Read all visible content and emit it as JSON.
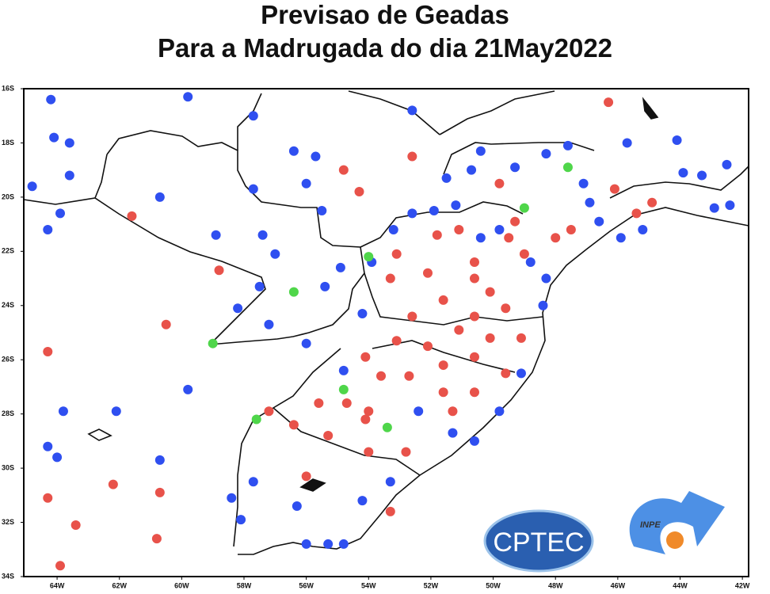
{
  "title": [
    "Previsao  de  Geadas",
    "Para a Madrugada do dia 21May2022"
  ],
  "map": {
    "xlim": [
      -65.07,
      -41.8
    ],
    "ylim": [
      -16,
      -34
    ],
    "xticks": [
      {
        "value": -64,
        "label": "64W"
      },
      {
        "value": -62,
        "label": "62W"
      },
      {
        "value": -60,
        "label": "60W"
      },
      {
        "value": -58,
        "label": "58W"
      },
      {
        "value": -56,
        "label": "56W"
      },
      {
        "value": -54,
        "label": "54W"
      },
      {
        "value": -52,
        "label": "52W"
      },
      {
        "value": -50,
        "label": "50W"
      },
      {
        "value": -48,
        "label": "48W"
      },
      {
        "value": -46,
        "label": "46W"
      },
      {
        "value": -44,
        "label": "44W"
      },
      {
        "value": -42,
        "label": "42W"
      }
    ],
    "yticks": [
      {
        "value": -16,
        "label": "16S"
      },
      {
        "value": -18,
        "label": "18S"
      },
      {
        "value": -20,
        "label": "20S"
      },
      {
        "value": -22,
        "label": "22S"
      },
      {
        "value": -24,
        "label": "24S"
      },
      {
        "value": -26,
        "label": "26S"
      },
      {
        "value": -28,
        "label": "28S"
      },
      {
        "value": -30,
        "label": "30S"
      },
      {
        "value": -32,
        "label": "32S"
      },
      {
        "value": -34,
        "label": "34S"
      }
    ],
    "stations": [
      {
        "color": "#2f4ff0",
        "points": [
          [
            -64.2,
            -16.4
          ],
          [
            -59.8,
            -16.3
          ],
          [
            -64.1,
            -17.8
          ],
          [
            -63.6,
            -18.0
          ],
          [
            -64.8,
            -19.6
          ],
          [
            -63.6,
            -19.2
          ],
          [
            -64.3,
            -21.2
          ],
          [
            -63.9,
            -20.6
          ],
          [
            -60.7,
            -20.0
          ],
          [
            -57.7,
            -17.0
          ],
          [
            -57.7,
            -19.7
          ],
          [
            -56.4,
            -18.3
          ],
          [
            -55.7,
            -18.5
          ],
          [
            -56.0,
            -19.5
          ],
          [
            -55.5,
            -20.5
          ],
          [
            -57.4,
            -21.4
          ],
          [
            -58.9,
            -21.4
          ],
          [
            -57.0,
            -22.1
          ],
          [
            -57.5,
            -23.3
          ],
          [
            -58.2,
            -24.1
          ],
          [
            -57.2,
            -24.7
          ],
          [
            -56.0,
            -25.4
          ],
          [
            -54.8,
            -26.4
          ],
          [
            -59.8,
            -27.1
          ],
          [
            -63.8,
            -27.9
          ],
          [
            -62.1,
            -27.9
          ],
          [
            -64.3,
            -29.2
          ],
          [
            -64.0,
            -29.6
          ],
          [
            -60.7,
            -29.7
          ],
          [
            -57.7,
            -30.5
          ],
          [
            -58.4,
            -31.1
          ],
          [
            -58.1,
            -31.9
          ],
          [
            -56.3,
            -31.4
          ],
          [
            -56.0,
            -32.8
          ],
          [
            -55.3,
            -32.8
          ],
          [
            -54.8,
            -32.8
          ],
          [
            -54.2,
            -31.2
          ],
          [
            -53.3,
            -30.5
          ],
          [
            -52.4,
            -27.9
          ],
          [
            -51.3,
            -28.7
          ],
          [
            -50.6,
            -29.0
          ],
          [
            -49.8,
            -27.9
          ],
          [
            -49.1,
            -26.5
          ],
          [
            -48.4,
            -24.0
          ],
          [
            -48.3,
            -23.0
          ],
          [
            -48.8,
            -22.4
          ],
          [
            -50.4,
            -18.3
          ],
          [
            -50.7,
            -19.0
          ],
          [
            -51.5,
            -19.3
          ],
          [
            -51.2,
            -20.3
          ],
          [
            -51.9,
            -20.5
          ],
          [
            -52.6,
            -20.6
          ],
          [
            -50.4,
            -21.5
          ],
          [
            -49.8,
            -21.2
          ],
          [
            -49.3,
            -18.9
          ],
          [
            -48.3,
            -18.4
          ],
          [
            -47.6,
            -18.1
          ],
          [
            -47.1,
            -19.5
          ],
          [
            -46.9,
            -20.2
          ],
          [
            -46.6,
            -20.9
          ],
          [
            -45.9,
            -21.5
          ],
          [
            -45.2,
            -21.2
          ],
          [
            -45.7,
            -18.0
          ],
          [
            -44.1,
            -17.9
          ],
          [
            -43.9,
            -19.1
          ],
          [
            -43.3,
            -19.2
          ],
          [
            -42.5,
            -18.8
          ],
          [
            -42.4,
            -20.3
          ],
          [
            -42.9,
            -20.4
          ],
          [
            -52.6,
            -16.8
          ],
          [
            -53.9,
            -22.4
          ],
          [
            -54.9,
            -22.6
          ],
          [
            -55.4,
            -23.3
          ],
          [
            -54.2,
            -24.3
          ],
          [
            -53.2,
            -21.2
          ]
        ]
      },
      {
        "color": "#e8524a",
        "points": [
          [
            -46.3,
            -16.5
          ],
          [
            -52.6,
            -18.5
          ],
          [
            -54.8,
            -19.0
          ],
          [
            -54.3,
            -19.8
          ],
          [
            -61.6,
            -20.7
          ],
          [
            -58.8,
            -22.7
          ],
          [
            -60.5,
            -24.7
          ],
          [
            -64.3,
            -25.7
          ],
          [
            -62.2,
            -30.6
          ],
          [
            -60.7,
            -30.9
          ],
          [
            -64.3,
            -31.1
          ],
          [
            -63.4,
            -32.1
          ],
          [
            -60.8,
            -32.6
          ],
          [
            -63.9,
            -33.6
          ],
          [
            -51.8,
            -21.4
          ],
          [
            -51.1,
            -21.2
          ],
          [
            -50.6,
            -22.4
          ],
          [
            -49.5,
            -21.5
          ],
          [
            -49.0,
            -22.1
          ],
          [
            -48.0,
            -21.5
          ],
          [
            -47.5,
            -21.2
          ],
          [
            -46.1,
            -19.7
          ],
          [
            -45.4,
            -20.6
          ],
          [
            -44.9,
            -20.2
          ],
          [
            -53.1,
            -22.1
          ],
          [
            -52.1,
            -22.8
          ],
          [
            -53.3,
            -23.0
          ],
          [
            -50.6,
            -23.0
          ],
          [
            -50.1,
            -23.5
          ],
          [
            -51.6,
            -23.8
          ],
          [
            -52.6,
            -24.4
          ],
          [
            -50.6,
            -24.4
          ],
          [
            -49.6,
            -24.1
          ],
          [
            -51.1,
            -24.9
          ],
          [
            -50.1,
            -25.2
          ],
          [
            -49.1,
            -25.2
          ],
          [
            -52.1,
            -25.5
          ],
          [
            -53.1,
            -25.3
          ],
          [
            -54.1,
            -25.9
          ],
          [
            -53.6,
            -26.6
          ],
          [
            -51.6,
            -26.2
          ],
          [
            -50.6,
            -25.9
          ],
          [
            -49.6,
            -26.5
          ],
          [
            -51.6,
            -27.2
          ],
          [
            -50.6,
            -27.2
          ],
          [
            -54.0,
            -27.9
          ],
          [
            -52.7,
            -26.6
          ],
          [
            -55.6,
            -27.6
          ],
          [
            -54.7,
            -27.6
          ],
          [
            -57.2,
            -27.9
          ],
          [
            -56.4,
            -28.4
          ],
          [
            -54.1,
            -28.2
          ],
          [
            -55.3,
            -28.8
          ],
          [
            -54.0,
            -29.4
          ],
          [
            -52.8,
            -29.4
          ],
          [
            -51.3,
            -27.9
          ],
          [
            -56.0,
            -30.3
          ],
          [
            -53.3,
            -31.6
          ],
          [
            -49.8,
            -19.5
          ],
          [
            -49.3,
            -20.9
          ]
        ]
      },
      {
        "color": "#4fd64a",
        "points": [
          [
            -47.6,
            -18.9
          ],
          [
            -49.0,
            -20.4
          ],
          [
            -54.0,
            -22.2
          ],
          [
            -56.4,
            -23.5
          ],
          [
            -59.0,
            -25.4
          ],
          [
            -54.8,
            -27.1
          ],
          [
            -57.6,
            -28.2
          ],
          [
            -53.4,
            -28.5
          ]
        ]
      }
    ]
  },
  "logos": {
    "cptec": "CPTEC",
    "inpe": "INPE"
  }
}
